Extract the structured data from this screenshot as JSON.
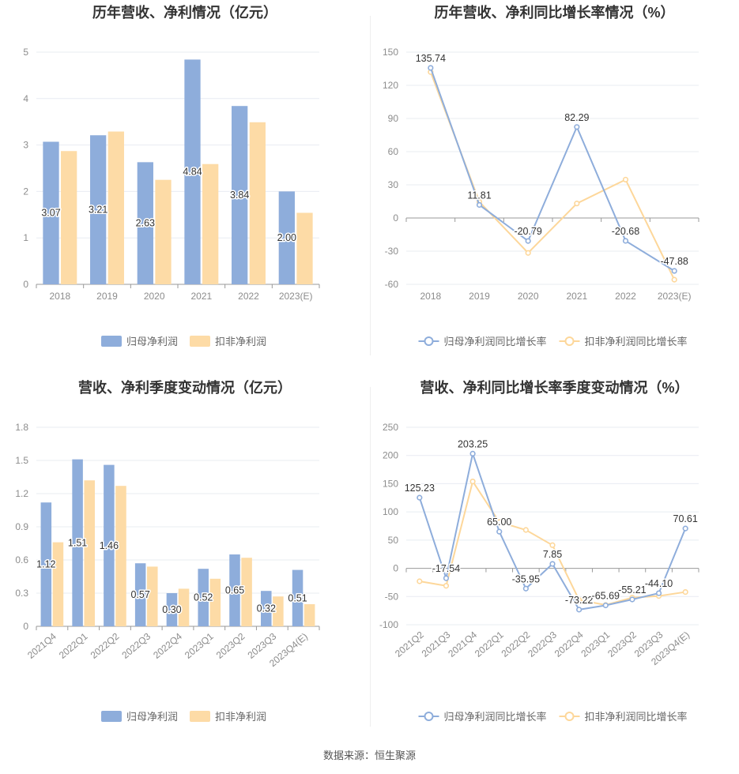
{
  "source_text": "数据来源：恒生聚源",
  "colors": {
    "blue": "#8eaddb",
    "blue_line": "#8eaddb",
    "orange": "#fddba6",
    "orange_line": "#fdd79a",
    "grid": "#e8ecf2",
    "axis": "#999999"
  },
  "chart_data": [
    {
      "id": "annual_profit",
      "type": "bar",
      "title": "历年营收、净利情况（亿元）",
      "categories": [
        "2018",
        "2019",
        "2020",
        "2021",
        "2022",
        "2023(E)"
      ],
      "series": [
        {
          "name": "归母净利润",
          "values": [
            3.07,
            3.21,
            2.63,
            4.84,
            3.84,
            2.0
          ],
          "labels": [
            "3.07",
            "3.21",
            "2.63",
            "4.84",
            "3.84",
            "2.00"
          ]
        },
        {
          "name": "扣非净利润",
          "values": [
            2.87,
            3.29,
            2.25,
            2.59,
            3.49,
            1.54
          ]
        }
      ],
      "ylim": [
        0,
        5
      ],
      "yticks": [
        "0",
        "1",
        "2",
        "3",
        "4",
        "5"
      ],
      "grid": true,
      "legend": "bottom-center"
    },
    {
      "id": "annual_growth",
      "type": "line",
      "title": "历年营收、净利同比增长率情况（%）",
      "categories": [
        "2018",
        "2019",
        "2020",
        "2021",
        "2022",
        "2023(E)"
      ],
      "series": [
        {
          "name": "归母净利润同比增长率",
          "values": [
            135.74,
            11.81,
            -20.79,
            82.29,
            -20.68,
            -47.88
          ],
          "labels": [
            "135.74",
            "11.81",
            "-20.79",
            "82.29",
            "-20.68",
            "-47.88"
          ]
        },
        {
          "name": "扣非净利润同比增长率",
          "values": [
            132,
            14.6,
            -31.6,
            13.1,
            34.7,
            -55.8
          ]
        }
      ],
      "ylim": [
        -60,
        150
      ],
      "yticks": [
        "-60",
        "-30",
        "0",
        "30",
        "60",
        "90",
        "120",
        "150"
      ],
      "grid": true,
      "legend": "bottom-center"
    },
    {
      "id": "quarterly_profit",
      "type": "bar",
      "title": "营收、净利季度变动情况（亿元）",
      "categories": [
        "2021Q4",
        "2022Q1",
        "2022Q2",
        "2022Q3",
        "2022Q4",
        "2023Q1",
        "2023Q2",
        "2023Q3",
        "2023Q4(E)"
      ],
      "series": [
        {
          "name": "归母净利润",
          "values": [
            1.12,
            1.51,
            1.46,
            0.57,
            0.3,
            0.52,
            0.65,
            0.32,
            0.51
          ],
          "labels": [
            "1.12",
            "1.51",
            "1.46",
            "0.57",
            "0.30",
            "0.52",
            "0.65",
            "0.32",
            "0.51"
          ]
        },
        {
          "name": "扣非净利润",
          "values": [
            0.76,
            1.32,
            1.27,
            0.54,
            0.34,
            0.43,
            0.62,
            0.27,
            0.2
          ]
        }
      ],
      "ylim": [
        0,
        1.8
      ],
      "yticks": [
        "0",
        "0.3",
        "0.6",
        "0.9",
        "1.2",
        "1.5",
        "1.8"
      ],
      "grid": true,
      "legend": "bottom-center"
    },
    {
      "id": "quarterly_growth",
      "type": "line",
      "title": "营收、净利同比增长率季度变动情况（%）",
      "categories": [
        "2021Q2",
        "2021Q3",
        "2021Q4",
        "2022Q1",
        "2022Q2",
        "2022Q3",
        "2022Q4",
        "2023Q1",
        "2023Q2",
        "2023Q3",
        "2023Q4(E)"
      ],
      "series": [
        {
          "name": "归母净利润同比增长率",
          "values": [
            125.23,
            -17.54,
            203.25,
            65.0,
            -35.95,
            7.85,
            -73.22,
            -65.69,
            -55.21,
            -44.1,
            70.61
          ],
          "labels": [
            "125.23",
            "-17.54",
            "203.25",
            "65.00",
            "-35.95",
            "7.85",
            "-73.22",
            "-65.69",
            "-55.21",
            "-44.10",
            "70.61"
          ]
        },
        {
          "name": "扣非净利润同比增长率",
          "values": [
            -23,
            -31,
            154,
            82,
            68,
            41,
            -56,
            -65,
            -52,
            -49,
            -42
          ]
        }
      ],
      "ylim": [
        -100,
        250
      ],
      "yticks": [
        "-100",
        "-50",
        "0",
        "50",
        "100",
        "150",
        "200",
        "250"
      ],
      "grid": true,
      "legend": "bottom-center"
    }
  ]
}
